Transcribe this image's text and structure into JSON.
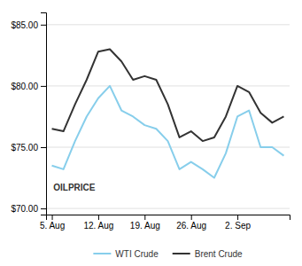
{
  "chart_data": {
    "type": "line",
    "x": [
      0,
      1,
      2,
      3,
      4,
      5,
      6,
      7,
      8,
      9,
      10,
      11,
      12,
      13,
      14,
      15,
      16,
      17,
      18,
      19,
      20
    ],
    "series": [
      {
        "name": "WTI Crude",
        "color": "#87CEEB",
        "values": [
          73.5,
          73.2,
          75.5,
          77.5,
          79.0,
          80.0,
          78.0,
          77.5,
          76.8,
          76.5,
          75.5,
          73.2,
          73.8,
          73.2,
          72.5,
          74.5,
          77.5,
          78.0,
          75.0,
          75.0,
          74.3
        ]
      },
      {
        "name": "Brent Crude",
        "color": "#333333",
        "values": [
          76.5,
          76.3,
          78.5,
          80.5,
          82.8,
          83.0,
          82.0,
          80.5,
          80.8,
          80.5,
          78.5,
          75.8,
          76.3,
          75.5,
          75.8,
          77.5,
          80.0,
          79.5,
          77.8,
          77.0,
          77.5
        ]
      }
    ],
    "xlim": [
      -0.5,
      20.5
    ],
    "xticks": [
      {
        "value": 0,
        "label": "5. Aug"
      },
      {
        "value": 4,
        "label": "12. Aug"
      },
      {
        "value": 8,
        "label": "19. Aug"
      },
      {
        "value": 12,
        "label": "26. Aug"
      },
      {
        "value": 16,
        "label": "2. Sep"
      }
    ],
    "ylim": [
      69.5,
      86.0
    ],
    "yticks": [
      {
        "value": 70,
        "label": "$70.00"
      },
      {
        "value": 75,
        "label": "$75.00"
      },
      {
        "value": 80,
        "label": "$80.00"
      },
      {
        "value": 85,
        "label": "$85.00"
      }
    ],
    "grid": true,
    "legend": "bottom",
    "annotations": [
      "OILPRICE"
    ]
  }
}
